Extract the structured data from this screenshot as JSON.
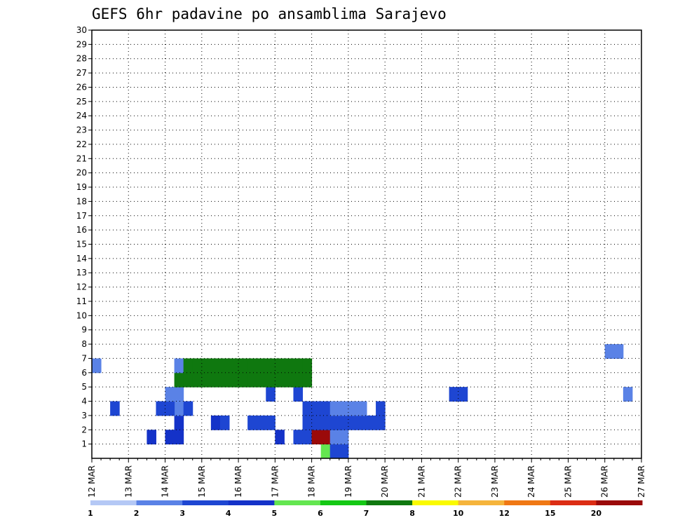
{
  "chart_data": {
    "type": "heatmap",
    "title": "GEFS 6hr padavine po ansamblima Sarajevo",
    "xlabel": "",
    "ylabel": "",
    "x_tick_labels": [
      "12 MAR",
      "13 MAR",
      "14 MAR",
      "15 MAR",
      "16 MAR",
      "17 MAR",
      "18 MAR",
      "19 MAR",
      "20 MAR",
      "21 MAR",
      "22 MAR",
      "23 MAR",
      "24 MAR",
      "25 MAR",
      "26 MAR",
      "27 MAR"
    ],
    "y_tick_labels": [
      "1",
      "2",
      "3",
      "4",
      "5",
      "6",
      "7",
      "8",
      "9",
      "10",
      "11",
      "12",
      "13",
      "14",
      "15",
      "16",
      "17",
      "18",
      "19",
      "20",
      "21",
      "22",
      "23",
      "24",
      "25",
      "26",
      "27",
      "28",
      "29",
      "30"
    ],
    "grid": true,
    "time_step_hours": 6,
    "columns_per_day": 4,
    "colorbar": {
      "tick_labels": [
        "1",
        "2",
        "3",
        "4",
        "5",
        "6",
        "7",
        "8",
        "10",
        "12",
        "15",
        "20"
      ],
      "colors": [
        "#b4c8f5",
        "#5a82e6",
        "#1e46d2",
        "#1432c8",
        "#64e650",
        "#14c814",
        "#0f780f",
        "#fafa00",
        "#f5b43c",
        "#f07814",
        "#dc2d14",
        "#9b0a0a",
        "#6e0000"
      ]
    },
    "cells": [
      [
        1,
        25,
        4,
        0
      ],
      [
        1,
        26,
        2,
        0
      ],
      [
        1,
        27,
        2,
        0
      ],
      [
        2,
        6,
        3,
        0
      ],
      [
        2,
        8,
        3,
        0
      ],
      [
        2,
        9,
        3,
        0
      ],
      [
        2,
        20,
        3,
        0
      ],
      [
        2,
        22,
        2,
        0
      ],
      [
        2,
        23,
        2,
        0
      ],
      [
        2,
        24,
        11,
        0
      ],
      [
        2,
        25,
        11,
        0
      ],
      [
        2,
        26,
        1,
        0
      ],
      [
        2,
        27,
        1,
        0
      ],
      [
        3,
        9,
        3,
        0
      ],
      [
        3,
        13,
        3,
        0
      ],
      [
        3,
        14,
        2,
        0
      ],
      [
        3,
        17,
        2,
        0
      ],
      [
        3,
        18,
        2,
        0
      ],
      [
        3,
        19,
        2,
        0
      ],
      [
        3,
        23,
        2,
        0
      ],
      [
        3,
        24,
        2,
        0
      ],
      [
        3,
        25,
        2,
        0
      ],
      [
        3,
        26,
        2,
        0
      ],
      [
        3,
        27,
        2,
        0
      ],
      [
        3,
        28,
        2,
        0
      ],
      [
        3,
        29,
        2,
        0
      ],
      [
        3,
        30,
        2,
        0
      ],
      [
        3,
        31,
        2,
        0
      ],
      [
        4,
        9,
        1,
        0
      ],
      [
        4,
        9,
        1,
        0
      ],
      [
        4,
        2,
        2,
        0
      ],
      [
        4,
        7,
        2,
        0
      ],
      [
        4,
        8,
        2,
        0
      ],
      [
        4,
        10,
        2,
        0
      ],
      [
        4,
        23,
        2,
        0
      ],
      [
        4,
        24,
        2,
        0
      ],
      [
        4,
        25,
        2,
        0
      ],
      [
        4,
        26,
        1,
        0
      ],
      [
        4,
        27,
        1,
        0
      ],
      [
        4,
        28,
        1,
        0
      ],
      [
        4,
        29,
        1,
        0
      ],
      [
        4,
        31,
        2,
        0
      ],
      [
        5,
        8,
        1,
        0
      ],
      [
        5,
        9,
        1,
        0
      ],
      [
        5,
        19,
        2,
        0
      ],
      [
        5,
        22,
        2,
        0
      ],
      [
        5,
        39,
        2,
        0
      ],
      [
        5,
        40,
        2,
        0
      ],
      [
        5,
        58,
        1,
        0
      ],
      [
        6,
        9,
        6,
        0
      ],
      [
        6,
        10,
        6,
        0
      ],
      [
        6,
        11,
        6,
        0
      ],
      [
        6,
        12,
        6,
        0
      ],
      [
        6,
        13,
        6,
        0
      ],
      [
        6,
        14,
        6,
        0
      ],
      [
        6,
        15,
        6,
        0
      ],
      [
        6,
        16,
        6,
        0
      ],
      [
        6,
        17,
        6,
        0
      ],
      [
        6,
        18,
        6,
        0
      ],
      [
        6,
        19,
        6,
        0
      ],
      [
        6,
        20,
        6,
        0
      ],
      [
        6,
        21,
        6,
        0
      ],
      [
        6,
        22,
        6,
        0
      ],
      [
        6,
        23,
        6,
        0
      ],
      [
        7,
        0,
        1,
        0
      ],
      [
        7,
        9,
        1,
        0
      ],
      [
        7,
        10,
        6,
        0
      ],
      [
        7,
        11,
        6,
        0
      ],
      [
        7,
        12,
        6,
        0
      ],
      [
        7,
        13,
        6,
        0
      ],
      [
        7,
        14,
        6,
        0
      ],
      [
        7,
        15,
        6,
        0
      ],
      [
        7,
        16,
        6,
        0
      ],
      [
        7,
        17,
        6,
        0
      ],
      [
        7,
        18,
        6,
        0
      ],
      [
        7,
        19,
        6,
        0
      ],
      [
        7,
        20,
        6,
        0
      ],
      [
        7,
        21,
        6,
        0
      ],
      [
        7,
        22,
        6,
        0
      ],
      [
        7,
        23,
        6,
        0
      ],
      [
        8,
        56,
        1,
        0
      ],
      [
        8,
        57,
        1,
        0
      ]
    ],
    "legend_placement": "bottom"
  },
  "colors": {
    "background": "#ffffff",
    "grid": "#000000"
  }
}
